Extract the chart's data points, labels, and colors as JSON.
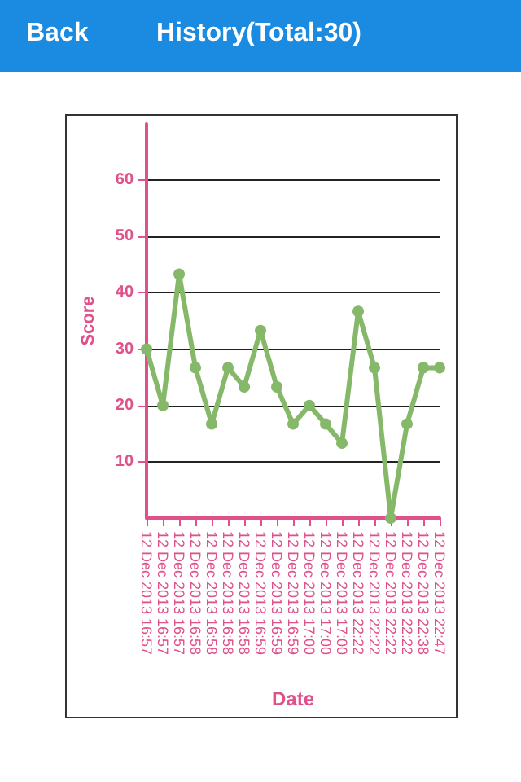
{
  "chart_data": {
    "type": "line",
    "title": "History(Total:30)",
    "annotations": [
      "Back"
    ],
    "xlabel": "Date",
    "ylabel": "Score",
    "categories": [
      "12 Dec 2013 16:57",
      "12 Dec 2013 16:57",
      "12 Dec 2013 16:57",
      "12 Dec 2013 16:58",
      "12 Dec 2013 16:58",
      "12 Dec 2013 16:58",
      "12 Dec 2013 16:58",
      "12 Dec 2013 16:59",
      "12 Dec 2013 16:59",
      "12 Dec 2013 16:59",
      "12 Dec 2013 17:00",
      "12 Dec 2013 17:00",
      "12 Dec 2013 17:00",
      "12 Dec 2013 22:22",
      "12 Dec 2013 22:22",
      "12 Dec 2013 22:22",
      "12 Dec 2013 22:22",
      "12 Dec 2013 22:38",
      "12 Dec 2013 22:47"
    ],
    "series": [
      {
        "color": "#86b86a",
        "values": [
          30,
          20,
          43.3,
          26.7,
          16.7,
          26.7,
          23.3,
          33.3,
          23.3,
          16.7,
          20,
          16.7,
          13.3,
          36.7,
          26.7,
          0,
          16.7,
          26.7,
          26.7
        ]
      }
    ],
    "ylim": [
      0,
      70
    ],
    "yticks": [
      10,
      20,
      30,
      40,
      50,
      60
    ],
    "grid": "y",
    "marker": "circle",
    "line_style": "solid"
  }
}
